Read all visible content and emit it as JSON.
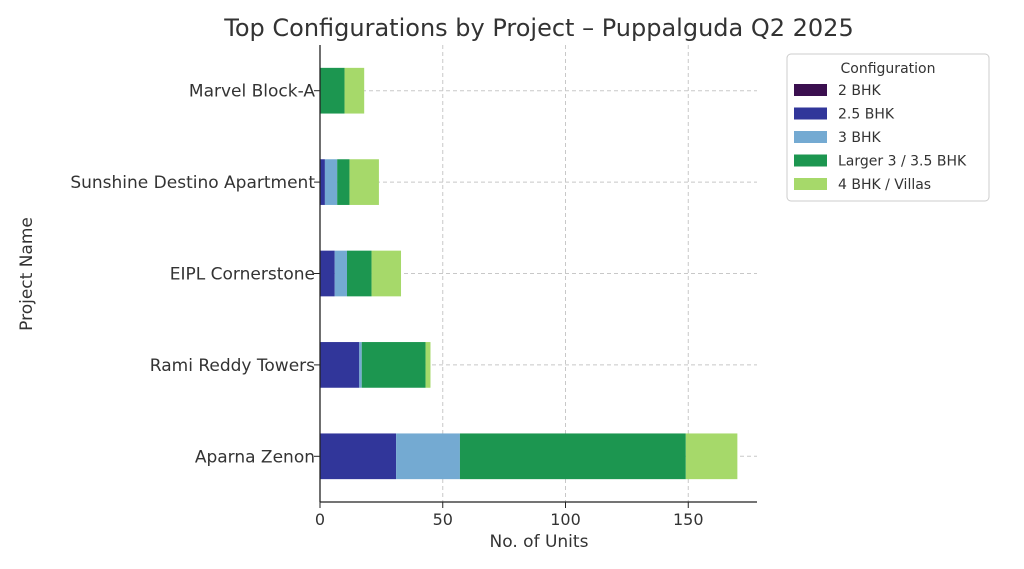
{
  "chart_data": {
    "type": "bar",
    "orientation": "horizontal",
    "stacked": true,
    "title": "Top Configurations by Project – Puppalguda Q2 2025",
    "xlabel": "No. of Units",
    "ylabel": "Project Name",
    "xlim": [
      0,
      178
    ],
    "xticks": [
      0,
      50,
      100,
      150
    ],
    "grid": true,
    "legend": {
      "title": "Configuration",
      "placement": "right"
    },
    "categories": [
      "Aparna Zenon",
      "Rami Reddy Towers",
      "EIPL Cornerstone",
      "Sunshine Destino Apartment",
      "Marvel Block-A"
    ],
    "series": [
      {
        "name": "2 BHK",
        "color": "#3b0f4f",
        "values": [
          0,
          0,
          0,
          0,
          0
        ]
      },
      {
        "name": "2.5 BHK",
        "color": "#31369a",
        "values": [
          31,
          16,
          6,
          2,
          0
        ]
      },
      {
        "name": "3 BHK",
        "color": "#74aad2",
        "values": [
          26,
          1,
          5,
          5,
          0
        ]
      },
      {
        "name": "Larger 3 / 3.5 BHK",
        "color": "#1c9650",
        "values": [
          92,
          26,
          10,
          5,
          10
        ]
      },
      {
        "name": "4 BHK / Villas",
        "color": "#a6d96a",
        "values": [
          21,
          2,
          12,
          12,
          8
        ]
      }
    ]
  }
}
